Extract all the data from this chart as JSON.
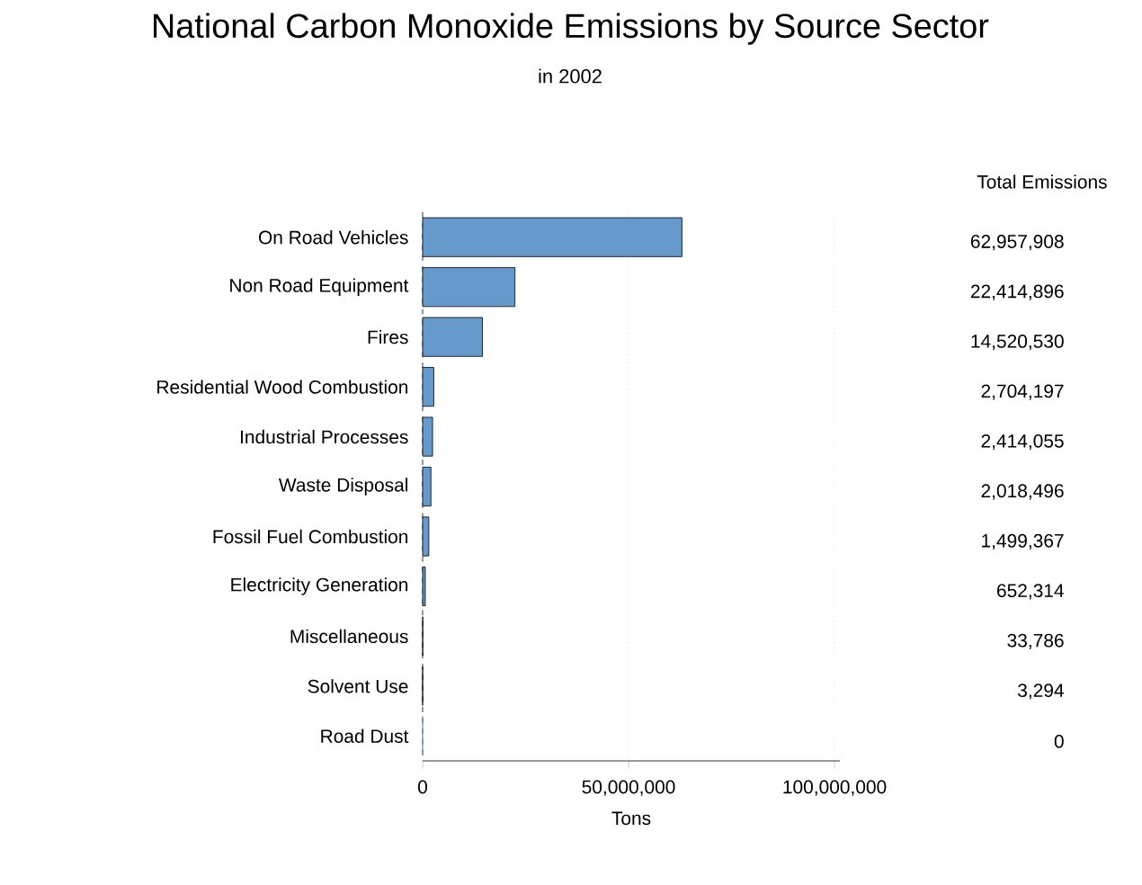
{
  "chart_data": {
    "type": "bar",
    "orientation": "horizontal",
    "title": "National Carbon Monoxide Emissions by Source Sector",
    "subtitle": "in 2002",
    "xlabel": "Tons",
    "annotations": [
      "Total Emissions"
    ],
    "categories": [
      "On Road Vehicles",
      "Non Road Equipment",
      "Fires",
      "Residential Wood Combustion",
      "Industrial Processes",
      "Waste Disposal",
      "Fossil Fuel Combustion",
      "Electricity Generation",
      "Miscellaneous",
      "Solvent Use",
      "Road Dust"
    ],
    "values": [
      62957908,
      22414896,
      14520530,
      2704197,
      2414055,
      2018496,
      1499367,
      652314,
      33786,
      3294,
      0
    ],
    "value_labels": [
      "62,957,908",
      "22,414,896",
      "14,520,530",
      "2,704,197",
      "2,414,055",
      "2,018,496",
      "1,499,367",
      "652,314",
      "33,786",
      "3,294",
      "0"
    ],
    "color": "#6699cc",
    "xlim": [
      0,
      101300000
    ],
    "xticks": [
      0,
      {
        "value": 50000000,
        "label": "50,000,000"
      },
      {
        "value": 100000000,
        "label": "100,000,000"
      }
    ],
    "grid": "x"
  }
}
